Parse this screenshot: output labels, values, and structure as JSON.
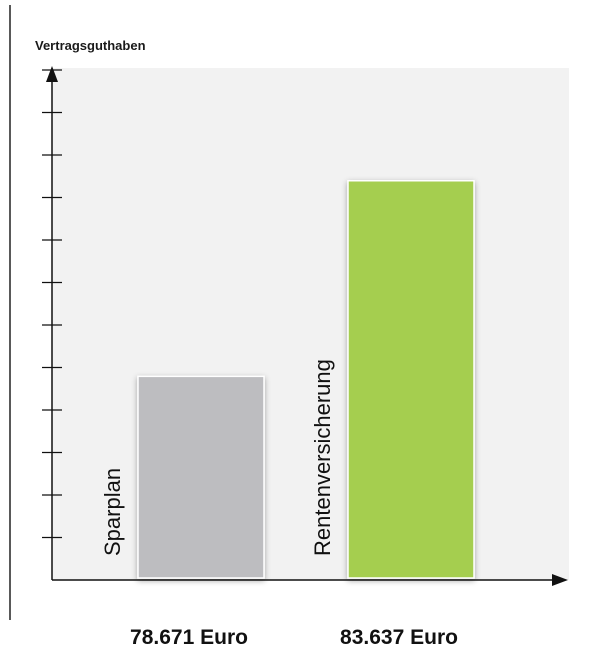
{
  "chart_data": {
    "type": "bar",
    "title": "",
    "ylabel": "Vertragsguthaben",
    "xlabel": "",
    "categories": [
      "Sparplan",
      "Rentenversicherung"
    ],
    "values": [
      78671,
      83637
    ],
    "value_labels": [
      "78.671 Euro",
      "83.637 Euro"
    ],
    "unit": "Euro",
    "ylim": [
      73500,
      86500
    ],
    "y_tick_count": 12,
    "y_tick_labels": "none",
    "grid": false,
    "legend": "none",
    "colors": {
      "Sparplan": "#bdbdc0",
      "Rentenversicherung": "#a5ce4f",
      "plot_background": "#f2f2f2",
      "axis": "#111111"
    }
  }
}
